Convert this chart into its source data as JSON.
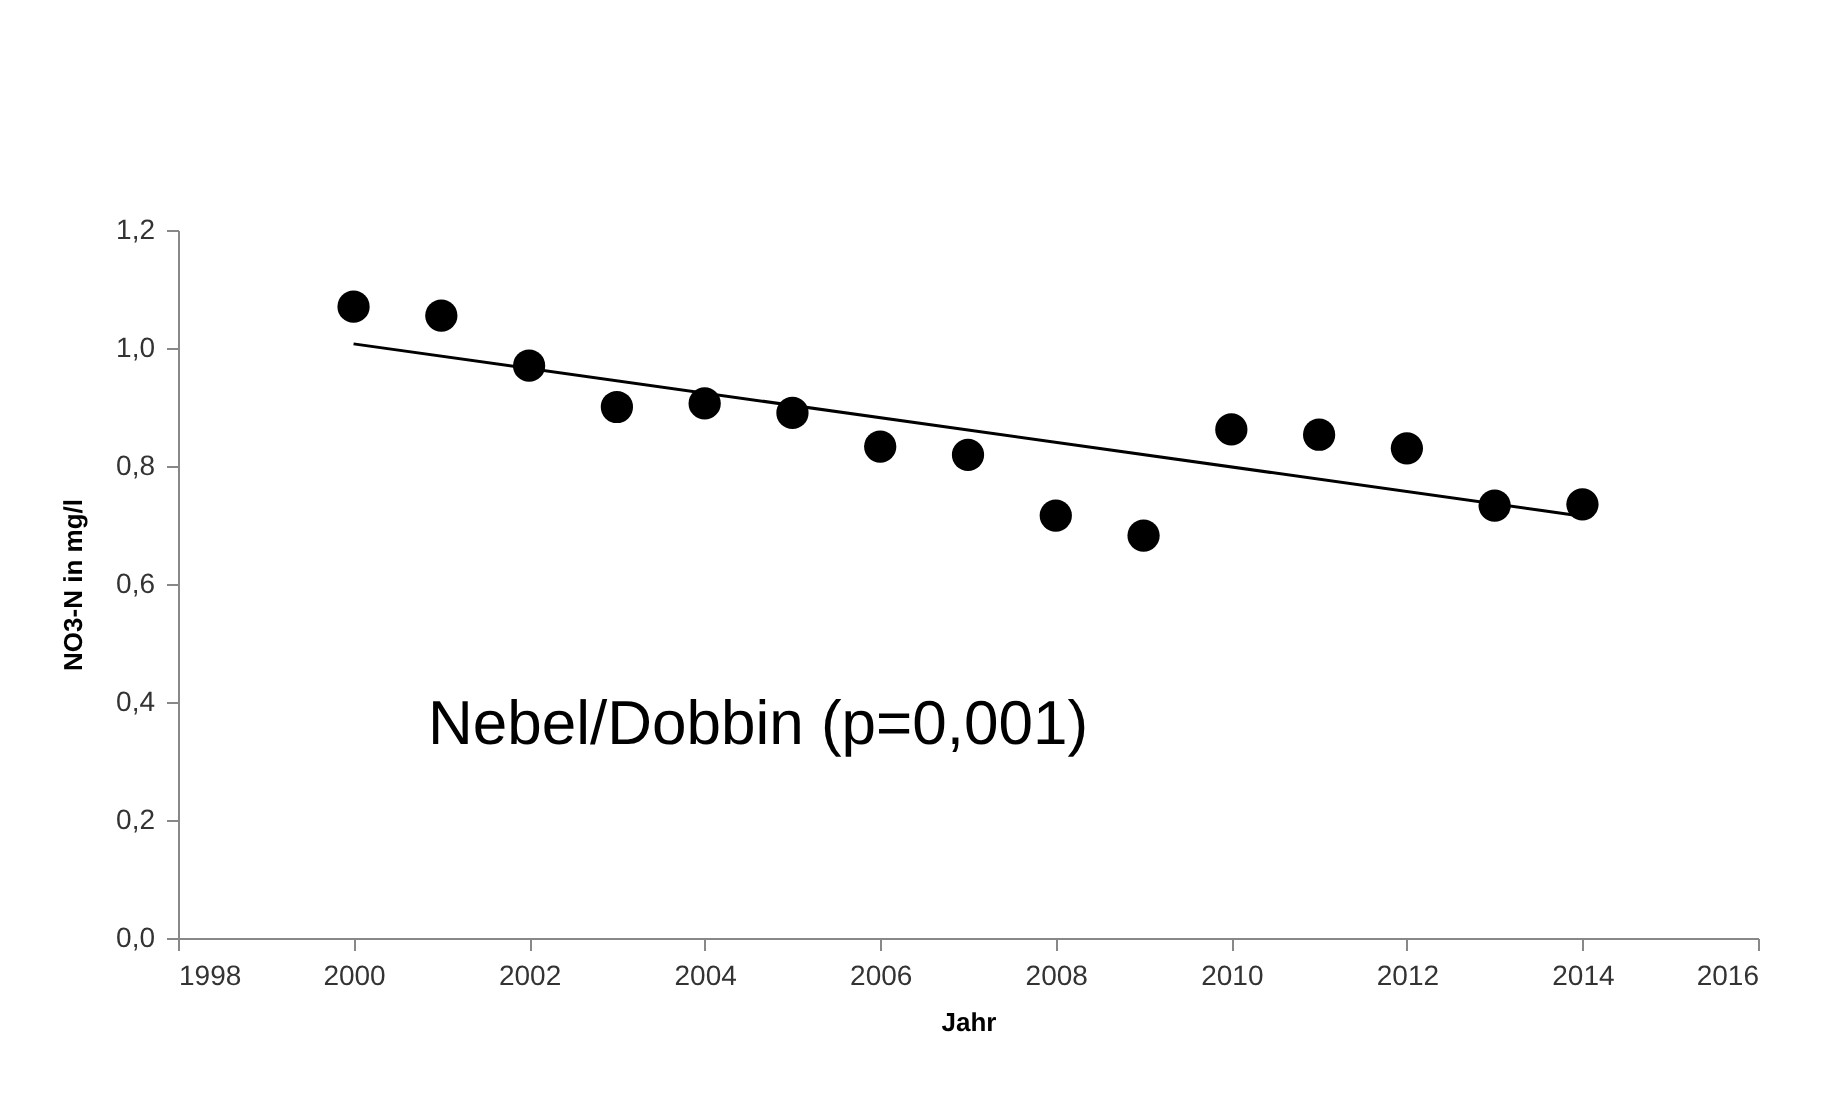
{
  "chart_data": {
    "type": "scatter",
    "xlabel": "Jahr",
    "ylabel": "NO3-N in mg/l",
    "annotations": [
      "Nebel/Dobbin (p=0,001)"
    ],
    "xlim": [
      1998,
      2016
    ],
    "xticks": [
      1998,
      2000,
      2002,
      2004,
      2006,
      2008,
      2010,
      2012,
      2014,
      2016
    ],
    "ylim": [
      0,
      1.2
    ],
    "yticks": [
      {
        "value": 0,
        "label": "0,0"
      },
      {
        "value": 0.2,
        "label": "0,2"
      },
      {
        "value": 0.4,
        "label": "0,4"
      },
      {
        "value": 0.6,
        "label": "0,6"
      },
      {
        "value": 0.8,
        "label": "0,8"
      },
      {
        "value": 1,
        "label": "1,0"
      },
      {
        "value": 1.2,
        "label": "1,2"
      }
    ],
    "grid": false,
    "series": [
      {
        "marker": "circle",
        "color": "#000000",
        "x": [
          2000,
          2001,
          2002,
          2003,
          2004,
          2005,
          2006,
          2007,
          2008,
          2009,
          2010,
          2011,
          2012,
          2013,
          2014
        ],
        "values": [
          1.07,
          1.055,
          0.97,
          0.9,
          0.906,
          0.89,
          0.833,
          0.819,
          0.716,
          0.682,
          0.862,
          0.853,
          0.83,
          0.733,
          0.735
        ]
      },
      {
        "type": "line",
        "marker": "none",
        "color": "#000000",
        "x": [
          2000,
          2014
        ],
        "values": [
          1.007,
          0.715
        ]
      }
    ]
  }
}
